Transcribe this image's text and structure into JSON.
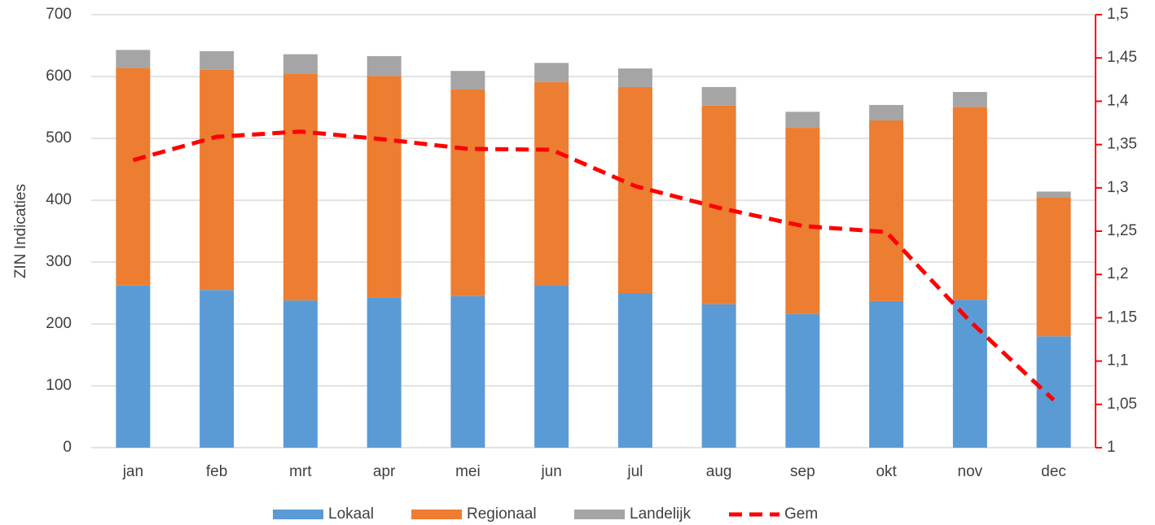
{
  "chart_data": {
    "type": "bar",
    "stacked": true,
    "y_label": "ZIN Indicaties",
    "categories": [
      "jan",
      "feb",
      "mrt",
      "apr",
      "mei",
      "jun",
      "jul",
      "aug",
      "sep",
      "okt",
      "nov",
      "dec"
    ],
    "series": [
      {
        "name": "Lokaal",
        "color": "#5b9bd5",
        "values": [
          262,
          255,
          238,
          243,
          245,
          263,
          250,
          232,
          216,
          237,
          239,
          180
        ]
      },
      {
        "name": "Regionaal",
        "color": "#ed7d31",
        "values": [
          352,
          356,
          367,
          358,
          334,
          328,
          333,
          321,
          301,
          292,
          312,
          225
        ]
      },
      {
        "name": "Landelijk",
        "color": "#a5a5a5",
        "values": [
          29,
          30,
          31,
          32,
          30,
          31,
          30,
          30,
          26,
          25,
          24,
          9
        ]
      },
      {
        "name": "Gem",
        "color": "#ff0000",
        "type": "line",
        "dashed": true,
        "axis": "y2",
        "values": [
          1.332,
          1.359,
          1.365,
          1.356,
          1.345,
          1.344,
          1.302,
          1.277,
          1.256,
          1.249,
          1.146,
          1.055
        ]
      }
    ],
    "ylim": [
      0,
      700
    ],
    "yticks": [
      0,
      100,
      200,
      300,
      400,
      500,
      600,
      700
    ],
    "y2lim": [
      1,
      1.5
    ],
    "y2ticks": [
      1,
      {
        "value": 1.05,
        "label": "1,05"
      },
      {
        "value": 1.1,
        "label": "1,1"
      },
      {
        "value": 1.15,
        "label": "1,15"
      },
      {
        "value": 1.2,
        "label": "1,2"
      },
      {
        "value": 1.25,
        "label": "1,25"
      },
      {
        "value": 1.3,
        "label": "1,3"
      },
      {
        "value": 1.35,
        "label": "1,35"
      },
      {
        "value": 1.4,
        "label": "1,4"
      },
      {
        "value": 1.45,
        "label": "1,45"
      },
      {
        "value": 1.5,
        "label": "1,5"
      }
    ],
    "y2_color": "#ff0000",
    "grid": true,
    "legend": "bottom"
  }
}
